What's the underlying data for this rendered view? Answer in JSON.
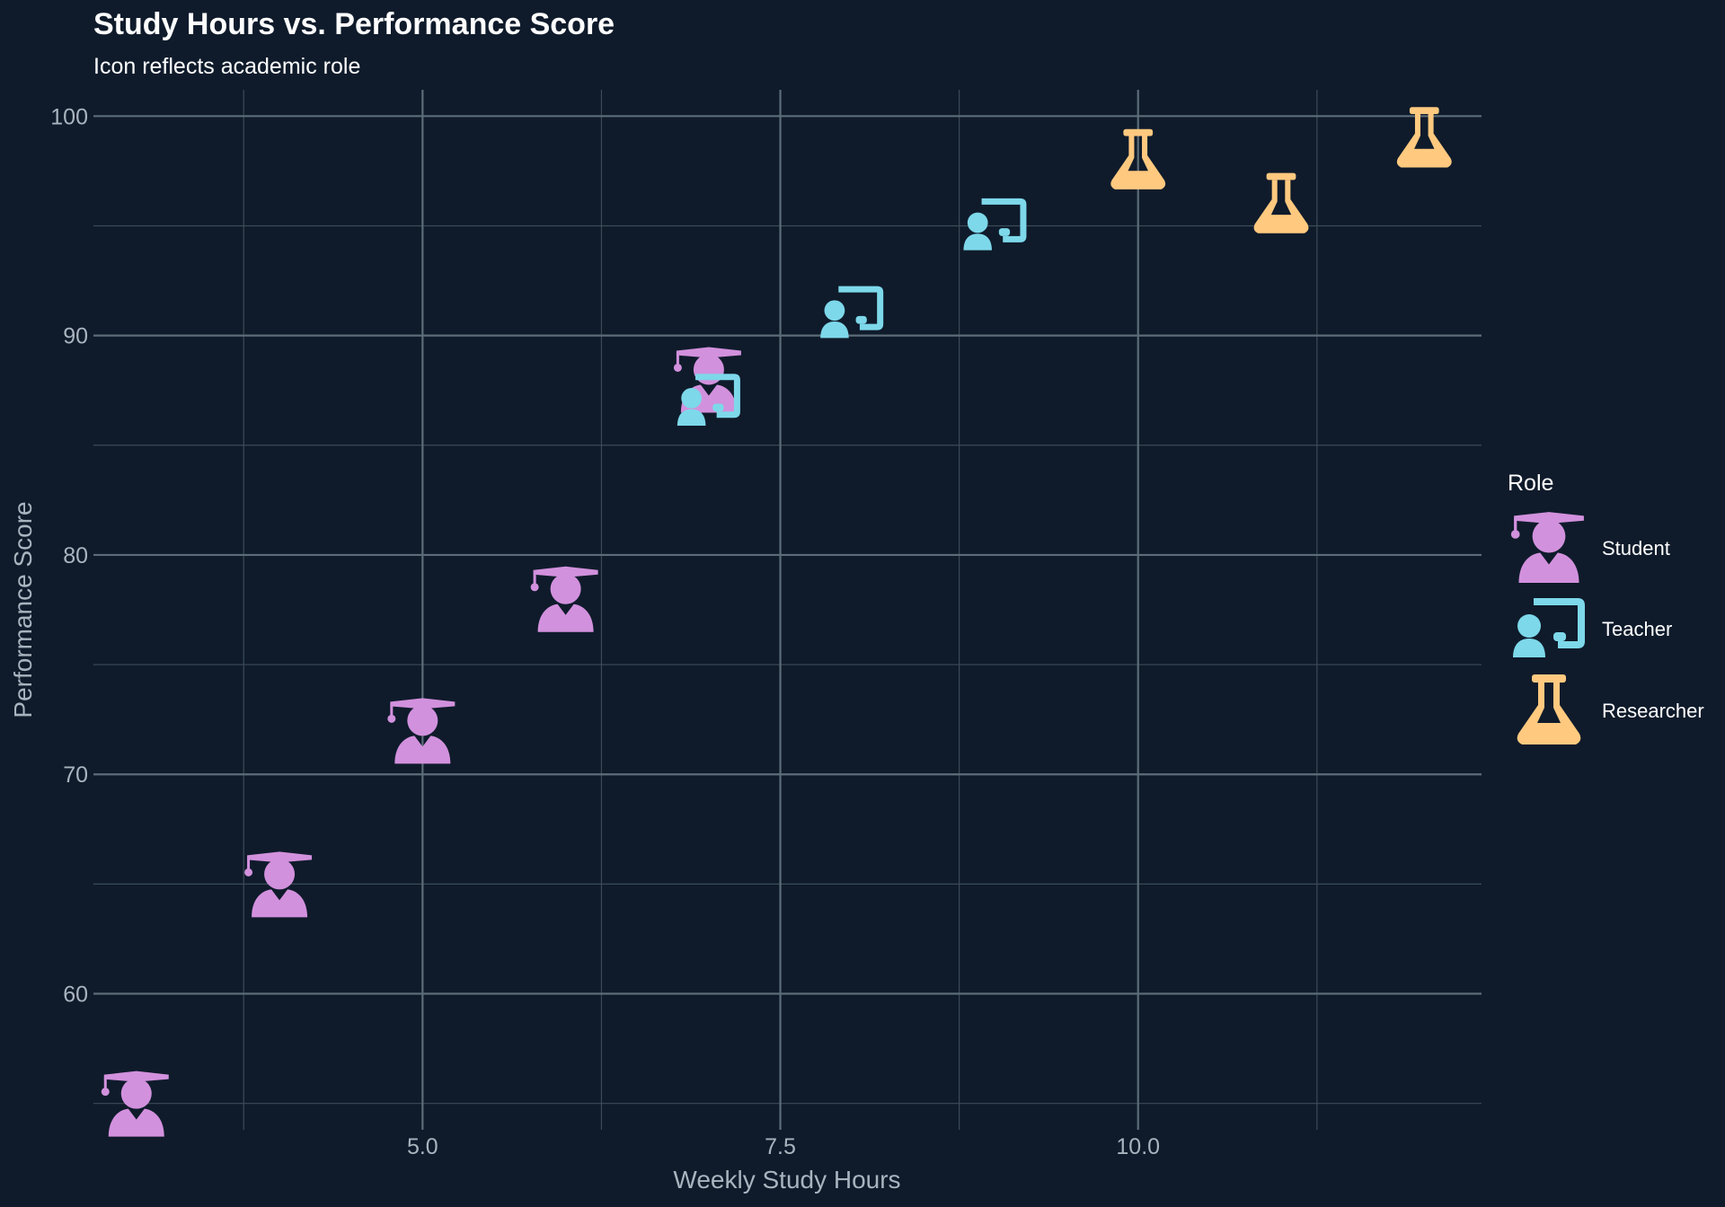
{
  "chart_data": {
    "type": "scatter",
    "title": "Study Hours vs. Performance Score",
    "subtitle": "Icon reflects academic role",
    "xlabel": "Weekly Study Hours",
    "ylabel": "Performance Score",
    "xlim": [
      2.7,
      12.4
    ],
    "ylim": [
      53.8,
      101.2
    ],
    "x_ticks": [
      5.0,
      7.5,
      10.0
    ],
    "x_tick_labels": [
      "5.0",
      "7.5",
      "10.0"
    ],
    "y_ticks": [
      60,
      70,
      80,
      90,
      100
    ],
    "y_tick_labels": [
      "60",
      "70",
      "80",
      "90",
      "100"
    ],
    "grid": true,
    "legend": {
      "title": "Role",
      "placement": "right",
      "entries": [
        {
          "label": "Student",
          "icon": "graduation-cap-user-icon",
          "color": "#d291dd"
        },
        {
          "label": "Teacher",
          "icon": "chalkboard-teacher-icon",
          "color": "#7dd8ea"
        },
        {
          "label": "Researcher",
          "icon": "flask-icon",
          "color": "#ffc97f"
        }
      ]
    },
    "series": [
      {
        "name": "Student",
        "points": [
          {
            "x": 3,
            "y": 55
          },
          {
            "x": 4,
            "y": 65
          },
          {
            "x": 5,
            "y": 72
          },
          {
            "x": 6,
            "y": 78
          },
          {
            "x": 7,
            "y": 88
          }
        ]
      },
      {
        "name": "Teacher",
        "points": [
          {
            "x": 7,
            "y": 87
          },
          {
            "x": 8,
            "y": 91
          },
          {
            "x": 9,
            "y": 95
          }
        ]
      },
      {
        "name": "Researcher",
        "points": [
          {
            "x": 10,
            "y": 98
          },
          {
            "x": 11,
            "y": 96
          },
          {
            "x": 12,
            "y": 99
          }
        ]
      }
    ]
  },
  "colors": {
    "background": "#0f1b2b",
    "grid_major": "#5c6c78",
    "grid_minor": "#3c4b58",
    "student": "#d291dd",
    "teacher": "#7dd8ea",
    "researcher": "#ffc97f"
  }
}
